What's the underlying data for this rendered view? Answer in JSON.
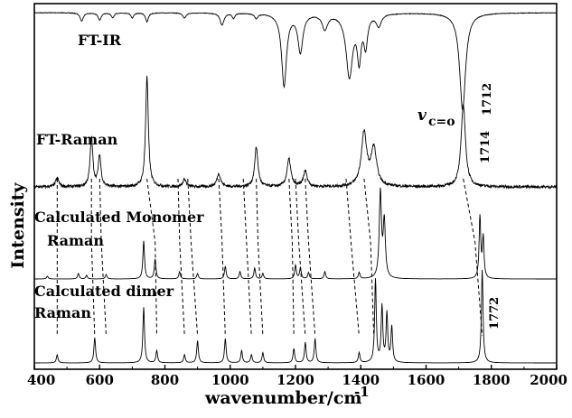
{
  "chart_data": {
    "type": "line",
    "xlabel": "wavenumber/cm",
    "xlabel_superscript": "-1",
    "ylabel": "Intensity",
    "xlim": [
      400,
      2000
    ],
    "x_ticks": [
      400,
      600,
      800,
      1000,
      1200,
      1400,
      1600,
      1800,
      2000
    ],
    "y_ticks_shown": false,
    "grid": false,
    "legend": "none",
    "series": [
      {
        "name": "FT-IR",
        "baseline": 0.97,
        "baseline_noise": 0.006,
        "peaks": [
          {
            "x": 545,
            "depth": 0.08,
            "width": 6
          },
          {
            "x": 600,
            "depth": 0.07,
            "width": 6
          },
          {
            "x": 640,
            "depth": 0.05,
            "width": 5
          },
          {
            "x": 700,
            "depth": 0.05,
            "width": 5
          },
          {
            "x": 745,
            "depth": 0.09,
            "width": 5
          },
          {
            "x": 860,
            "depth": 0.05,
            "width": 6
          },
          {
            "x": 975,
            "depth": 0.12,
            "width": 7
          },
          {
            "x": 1010,
            "depth": 0.05,
            "width": 5
          },
          {
            "x": 1080,
            "depth": 0.05,
            "width": 6
          },
          {
            "x": 1165,
            "depth": 0.72,
            "width": 9
          },
          {
            "x": 1215,
            "depth": 0.38,
            "width": 9
          },
          {
            "x": 1290,
            "depth": 0.15,
            "width": 10
          },
          {
            "x": 1365,
            "depth": 0.62,
            "width": 12
          },
          {
            "x": 1395,
            "depth": 0.42,
            "width": 7
          },
          {
            "x": 1415,
            "depth": 0.3,
            "width": 7
          },
          {
            "x": 1455,
            "depth": 0.12,
            "width": 9
          },
          {
            "x": 1712,
            "depth": 0.96,
            "width": 11
          }
        ]
      },
      {
        "name": "FT-Raman",
        "baseline": 0.04,
        "baseline_noise": 0.025,
        "peaks": [
          {
            "x": 470,
            "height": 0.08,
            "width": 6
          },
          {
            "x": 575,
            "height": 0.45,
            "width": 5
          },
          {
            "x": 600,
            "height": 0.28,
            "width": 5
          },
          {
            "x": 745,
            "height": 1.0,
            "width": 5
          },
          {
            "x": 860,
            "height": 0.07,
            "width": 6
          },
          {
            "x": 965,
            "height": 0.12,
            "width": 7
          },
          {
            "x": 1080,
            "height": 0.36,
            "width": 6
          },
          {
            "x": 1180,
            "height": 0.25,
            "width": 7
          },
          {
            "x": 1230,
            "height": 0.14,
            "width": 7
          },
          {
            "x": 1410,
            "height": 0.48,
            "width": 10
          },
          {
            "x": 1440,
            "height": 0.34,
            "width": 10
          },
          {
            "x": 1714,
            "height": 0.75,
            "width": 8
          }
        ]
      },
      {
        "name": "Calculated Monomer Raman",
        "baseline": 0.0,
        "peaks": [
          {
            "x": 440,
            "height": 0.03,
            "width": 3
          },
          {
            "x": 535,
            "height": 0.06,
            "width": 3
          },
          {
            "x": 560,
            "height": 0.04,
            "width": 3
          },
          {
            "x": 620,
            "height": 0.05,
            "width": 3
          },
          {
            "x": 735,
            "height": 0.42,
            "width": 3
          },
          {
            "x": 770,
            "height": 0.22,
            "width": 3
          },
          {
            "x": 845,
            "height": 0.08,
            "width": 3
          },
          {
            "x": 900,
            "height": 0.06,
            "width": 3
          },
          {
            "x": 985,
            "height": 0.14,
            "width": 3
          },
          {
            "x": 1030,
            "height": 0.08,
            "width": 3
          },
          {
            "x": 1075,
            "height": 0.12,
            "width": 3
          },
          {
            "x": 1100,
            "height": 0.06,
            "width": 3
          },
          {
            "x": 1200,
            "height": 0.15,
            "width": 3
          },
          {
            "x": 1215,
            "height": 0.12,
            "width": 3
          },
          {
            "x": 1240,
            "height": 0.07,
            "width": 3
          },
          {
            "x": 1290,
            "height": 0.08,
            "width": 3
          },
          {
            "x": 1395,
            "height": 0.07,
            "width": 3
          },
          {
            "x": 1460,
            "height": 0.95,
            "width": 4
          },
          {
            "x": 1472,
            "height": 0.62,
            "width": 4
          },
          {
            "x": 1765,
            "height": 0.68,
            "width": 3
          },
          {
            "x": 1775,
            "height": 0.45,
            "width": 3
          }
        ]
      },
      {
        "name": "Calculated dimer Raman",
        "baseline": 0.0,
        "peaks": [
          {
            "x": 470,
            "height": 0.08,
            "width": 3
          },
          {
            "x": 585,
            "height": 0.25,
            "width": 3
          },
          {
            "x": 735,
            "height": 0.55,
            "width": 3
          },
          {
            "x": 775,
            "height": 0.12,
            "width": 3
          },
          {
            "x": 860,
            "height": 0.08,
            "width": 3
          },
          {
            "x": 900,
            "height": 0.22,
            "width": 3
          },
          {
            "x": 985,
            "height": 0.24,
            "width": 3
          },
          {
            "x": 1035,
            "height": 0.12,
            "width": 3
          },
          {
            "x": 1065,
            "height": 0.08,
            "width": 3
          },
          {
            "x": 1100,
            "height": 0.1,
            "width": 3
          },
          {
            "x": 1195,
            "height": 0.14,
            "width": 3
          },
          {
            "x": 1230,
            "height": 0.2,
            "width": 3
          },
          {
            "x": 1260,
            "height": 0.24,
            "width": 3
          },
          {
            "x": 1395,
            "height": 0.1,
            "width": 3
          },
          {
            "x": 1445,
            "height": 0.82,
            "width": 3
          },
          {
            "x": 1465,
            "height": 0.55,
            "width": 3
          },
          {
            "x": 1480,
            "height": 0.48,
            "width": 3
          },
          {
            "x": 1495,
            "height": 0.35,
            "width": 3
          },
          {
            "x": 1772,
            "height": 0.92,
            "width": 3
          }
        ]
      }
    ],
    "annotations": [
      {
        "text": "1712",
        "x": 1712
      },
      {
        "text": "1714",
        "x": 1714
      },
      {
        "text": "1772",
        "x": 1772
      },
      {
        "text": "v",
        "subscript": "c=o",
        "x": 1650
      }
    ],
    "correlation_lines": [
      {
        "raman_x": 470,
        "mono_x": 470,
        "dimer_x": 470
      },
      {
        "raman_x": 575,
        "mono_x": 575,
        "dimer_x": 585
      },
      {
        "raman_x": 600,
        "mono_x": 605,
        "dimer_x": 620
      },
      {
        "raman_x": 745,
        "mono_x": 770,
        "dimer_x": 775
      },
      {
        "raman_x": 840,
        "mono_x": 845,
        "dimer_x": 860
      },
      {
        "raman_x": 870,
        "mono_x": 880,
        "dimer_x": 900
      },
      {
        "raman_x": 965,
        "mono_x": 975,
        "dimer_x": 985
      },
      {
        "raman_x": 1040,
        "mono_x": 1050,
        "dimer_x": 1065
      },
      {
        "raman_x": 1080,
        "mono_x": 1085,
        "dimer_x": 1100
      },
      {
        "raman_x": 1180,
        "mono_x": 1190,
        "dimer_x": 1195
      },
      {
        "raman_x": 1200,
        "mono_x": 1210,
        "dimer_x": 1230
      },
      {
        "raman_x": 1230,
        "mono_x": 1240,
        "dimer_x": 1260
      },
      {
        "raman_x": 1355,
        "mono_x": 1370,
        "dimer_x": 1395
      },
      {
        "raman_x": 1410,
        "mono_x": 1430,
        "dimer_x": 1440
      },
      {
        "raman_x": 1714,
        "mono_x": 1750,
        "dimer_x": 1772
      }
    ]
  }
}
